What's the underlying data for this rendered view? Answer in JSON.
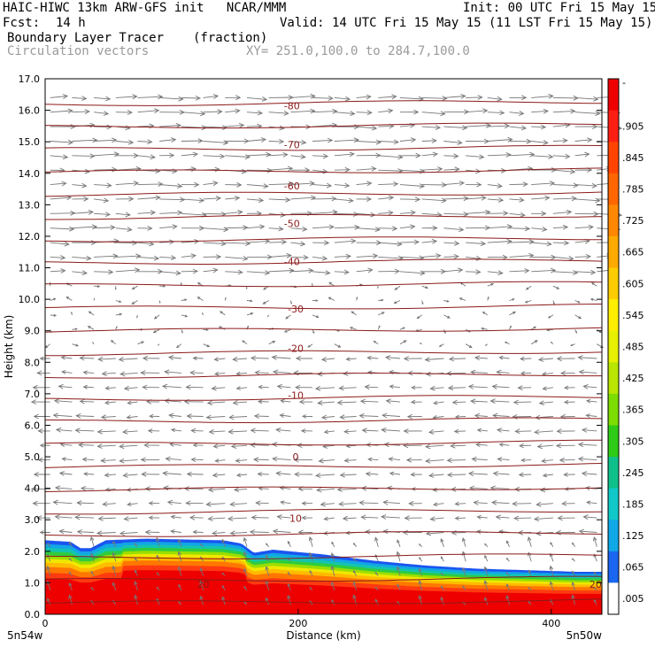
{
  "header": {
    "title_left": "HAIC-HIWC 13km ARW-GFS init   NCAR/MMM",
    "init": "Init: 00 UTC Fri 15 May 15",
    "fcst_label": "Fcst:",
    "fcst_value": "14 h",
    "valid": "Valid: 14 UTC Fri 15 May 15 (11 LST Fri 15 May 15)",
    "field1": "Boundary Layer Tracer",
    "field1_units": "(fraction)",
    "field2": "Circulation vectors",
    "xy": "XY= 251.0,100.0 to 284.7,100.0"
  },
  "chart_data": {
    "type": "heatmap",
    "xlabel": "Distance (km)",
    "ylabel": "Height (km)",
    "xlim": [
      0,
      440
    ],
    "ylim": [
      0,
      17
    ],
    "x_ticks": [
      {
        "value": 0,
        "label": "0"
      },
      {
        "value": 200,
        "label": "200"
      },
      {
        "value": 400,
        "label": "400"
      }
    ],
    "x_end_labels": {
      "left": "5n54w",
      "right": "5n50w"
    },
    "y_ticks": [
      "0.0",
      "1.0",
      "2.0",
      "3.0",
      "4.0",
      "5.0",
      "6.0",
      "7.0",
      "8.0",
      "9.0",
      "10.0",
      "11.0",
      "12.0",
      "13.0",
      "14.0",
      "15.0",
      "16.0",
      "17.0"
    ],
    "boundary_layer_top_km": [
      [
        0,
        2.35
      ],
      [
        20,
        2.3
      ],
      [
        28,
        2.1
      ],
      [
        36,
        2.1
      ],
      [
        48,
        2.35
      ],
      [
        80,
        2.4
      ],
      [
        140,
        2.35
      ],
      [
        155,
        2.25
      ],
      [
        165,
        1.95
      ],
      [
        180,
        2.05
      ],
      [
        220,
        1.9
      ],
      [
        260,
        1.7
      ],
      [
        300,
        1.55
      ],
      [
        340,
        1.45
      ],
      [
        380,
        1.4
      ],
      [
        420,
        1.35
      ],
      [
        440,
        1.35
      ]
    ],
    "colorbar": {
      "labels": [
        "-",
        ".905",
        ".845",
        ".785",
        ".725",
        ".665",
        ".605",
        ".545",
        ".485",
        ".425",
        ".365",
        ".305",
        ".245",
        ".185",
        ".125",
        ".065",
        ".005"
      ],
      "colors": [
        "#ee0000",
        "#fd1f13",
        "#ff4400",
        "#ff6600",
        "#ff8800",
        "#ffaa00",
        "#ffcc00",
        "#ffee00",
        "#e6f000",
        "#b8e600",
        "#7ddc00",
        "#2ecc18",
        "#10c08a",
        "#10c8c8",
        "#11a8e8",
        "#1a66f0",
        "#ffffff"
      ]
    },
    "temperature_contours": [
      {
        "label": "-80",
        "height_km": 16.15
      },
      {
        "label": "-70",
        "height_km": 14.9
      },
      {
        "label": "-60",
        "height_km": 13.6
      },
      {
        "label": "-50",
        "height_km": 12.4
      },
      {
        "label": "-40",
        "height_km": 11.2
      },
      {
        "label": "-30",
        "height_km": 9.7
      },
      {
        "label": "-20",
        "height_km": 8.45
      },
      {
        "label": "-10",
        "height_km": 6.95
      },
      {
        "label": "0",
        "height_km": 5.0
      },
      {
        "label": "10",
        "height_km": 3.05
      },
      {
        "label": "20",
        "height_km": 0.95
      },
      {
        "label": "20",
        "height_km": 0.95
      }
    ],
    "contour_label_positions_km": [
      195,
      195,
      195,
      195,
      195,
      198,
      198,
      198,
      198,
      198,
      125,
      435
    ],
    "colors": {
      "contour": "#8b1a1a",
      "vector": "#777777"
    }
  }
}
